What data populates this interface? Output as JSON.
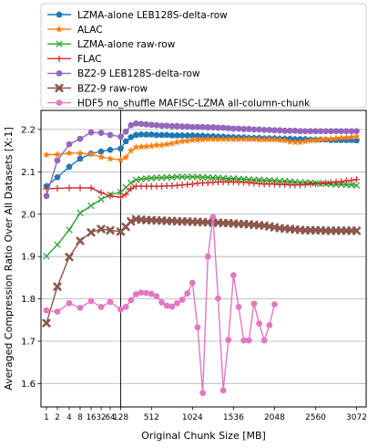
{
  "chart_data": {
    "type": "line",
    "title": "",
    "xlabel": "Original Chunk Size [MB]",
    "ylabel": "Averaged Compression Ratio Over All Datasets [X:1]",
    "xlim": [
      -120,
      3120
    ],
    "ylim": [
      1.545,
      2.245
    ],
    "grid": "horizontal",
    "legend_position": "top (above plot)",
    "reference_line_x": 128,
    "x_tick_labels": [
      "1",
      "2",
      "4",
      "8",
      "16",
      "32",
      "64",
      "128",
      "512",
      "1024",
      "1536",
      "2048",
      "2560",
      "3072"
    ],
    "y_tick_labels": [
      "1.6",
      "1.7",
      "1.8",
      "1.9",
      "2.0",
      "2.1",
      "2.2"
    ],
    "y_ticks": [
      1.6,
      1.7,
      1.8,
      1.9,
      2.0,
      2.1,
      2.2
    ],
    "series": [
      {
        "name": "LZMA-alone LEB128S-delta-row",
        "color": "#1f77b4",
        "marker": "pentagon",
        "x": [
          1,
          2,
          4,
          8,
          16,
          32,
          64,
          128,
          192,
          256,
          320,
          384,
          448,
          512,
          576,
          640,
          704,
          768,
          832,
          896,
          960,
          1024,
          1088,
          1152,
          1216,
          1280,
          1344,
          1408,
          1472,
          1536,
          1600,
          1664,
          1728,
          1792,
          1856,
          1920,
          1984,
          2048,
          2112,
          2176,
          2240,
          2304,
          2368,
          2432,
          2496,
          2560,
          2624,
          2688,
          2752,
          2816,
          2880,
          2944,
          3008,
          3072
        ],
        "y": [
          2.066,
          2.087,
          2.112,
          2.131,
          2.143,
          2.148,
          2.152,
          2.155,
          2.172,
          2.182,
          2.187,
          2.188,
          2.188,
          2.188,
          2.187,
          2.187,
          2.187,
          2.186,
          2.186,
          2.186,
          2.186,
          2.186,
          2.185,
          2.185,
          2.184,
          2.184,
          2.183,
          2.183,
          2.182,
          2.182,
          2.181,
          2.181,
          2.18,
          2.18,
          2.18,
          2.179,
          2.179,
          2.179,
          2.178,
          2.178,
          2.178,
          2.177,
          2.177,
          2.177,
          2.176,
          2.176,
          2.176,
          2.176,
          2.175,
          2.175,
          2.175,
          2.175,
          2.175,
          2.174
        ]
      },
      {
        "name": "ALAC",
        "color": "#ff7f0e",
        "marker": "star",
        "x": [
          1,
          2,
          4,
          8,
          16,
          32,
          64,
          128,
          192,
          256,
          320,
          384,
          448,
          512,
          576,
          640,
          704,
          768,
          832,
          896,
          960,
          1024,
          1088,
          1152,
          1216,
          1280,
          1344,
          1408,
          1472,
          1536,
          1600,
          1664,
          1728,
          1792,
          1856,
          1920,
          1984,
          2048,
          2112,
          2176,
          2240,
          2304,
          2368,
          2432,
          2496,
          2560,
          2624,
          2688,
          2752,
          2816,
          2880,
          2944,
          3008,
          3072
        ],
        "y": [
          2.14,
          2.141,
          2.144,
          2.144,
          2.142,
          2.135,
          2.131,
          2.128,
          2.134,
          2.15,
          2.158,
          2.159,
          2.16,
          2.161,
          2.163,
          2.163,
          2.165,
          2.167,
          2.17,
          2.172,
          2.173,
          2.175,
          2.175,
          2.176,
          2.177,
          2.177,
          2.177,
          2.177,
          2.177,
          2.177,
          2.177,
          2.177,
          2.177,
          2.177,
          2.176,
          2.176,
          2.176,
          2.176,
          2.175,
          2.174,
          2.171,
          2.17,
          2.17,
          2.172,
          2.174,
          2.175,
          2.176,
          2.177,
          2.178,
          2.179,
          2.18,
          2.181,
          2.182,
          2.183
        ]
      },
      {
        "name": "LZMA-alone raw-row",
        "color": "#2ca02c",
        "marker": "x",
        "x": [
          1,
          2,
          4,
          8,
          16,
          32,
          64,
          128,
          192,
          256,
          320,
          384,
          448,
          512,
          576,
          640,
          704,
          768,
          832,
          896,
          960,
          1024,
          1088,
          1152,
          1216,
          1280,
          1344,
          1408,
          1472,
          1536,
          1600,
          1664,
          1728,
          1792,
          1856,
          1920,
          1984,
          2048,
          2112,
          2176,
          2240,
          2304,
          2368,
          2432,
          2496,
          2560,
          2624,
          2688,
          2752,
          2816,
          2880,
          2944,
          3008,
          3072
        ],
        "y": [
          1.901,
          1.928,
          1.963,
          2.003,
          2.02,
          2.035,
          2.046,
          2.052,
          2.063,
          2.074,
          2.081,
          2.083,
          2.084,
          2.085,
          2.086,
          2.086,
          2.087,
          2.087,
          2.088,
          2.088,
          2.088,
          2.088,
          2.088,
          2.087,
          2.087,
          2.086,
          2.086,
          2.085,
          2.084,
          2.084,
          2.083,
          2.083,
          2.082,
          2.081,
          2.081,
          2.08,
          2.08,
          2.079,
          2.078,
          2.078,
          2.077,
          2.076,
          2.075,
          2.075,
          2.074,
          2.073,
          2.072,
          2.072,
          2.071,
          2.07,
          2.07,
          2.069,
          2.069,
          2.068
        ]
      },
      {
        "name": "FLAC",
        "color": "#d62728",
        "marker": "plus",
        "x": [
          1,
          2,
          4,
          8,
          16,
          32,
          64,
          128,
          192,
          256,
          320,
          384,
          448,
          512,
          576,
          640,
          704,
          768,
          832,
          896,
          960,
          1024,
          1088,
          1152,
          1216,
          1280,
          1344,
          1408,
          1472,
          1536,
          1600,
          1664,
          1728,
          1792,
          1856,
          1920,
          1984,
          2048,
          2112,
          2176,
          2240,
          2304,
          2368,
          2432,
          2496,
          2560,
          2624,
          2688,
          2752,
          2816,
          2880,
          2944,
          3008,
          3072
        ],
        "y": [
          2.06,
          2.061,
          2.062,
          2.062,
          2.062,
          2.051,
          2.043,
          2.04,
          2.047,
          2.06,
          2.066,
          2.066,
          2.066,
          2.066,
          2.066,
          2.066,
          2.067,
          2.067,
          2.068,
          2.069,
          2.07,
          2.071,
          2.073,
          2.074,
          2.074,
          2.075,
          2.076,
          2.076,
          2.076,
          2.076,
          2.075,
          2.075,
          2.074,
          2.073,
          2.072,
          2.071,
          2.071,
          2.071,
          2.07,
          2.07,
          2.069,
          2.069,
          2.069,
          2.07,
          2.071,
          2.072,
          2.073,
          2.074,
          2.075,
          2.076,
          2.077,
          2.079,
          2.08,
          2.082
        ]
      },
      {
        "name": "BZ2-9 LEB128S-delta-row",
        "color": "#9467bd",
        "marker": "circle",
        "x": [
          1,
          2,
          4,
          8,
          16,
          32,
          64,
          128,
          192,
          256,
          320,
          384,
          448,
          512,
          576,
          640,
          704,
          768,
          832,
          896,
          960,
          1024,
          1088,
          1152,
          1216,
          1280,
          1344,
          1408,
          1472,
          1536,
          1600,
          1664,
          1728,
          1792,
          1856,
          1920,
          1984,
          2048,
          2112,
          2176,
          2240,
          2304,
          2368,
          2432,
          2496,
          2560,
          2624,
          2688,
          2752,
          2816,
          2880,
          2944,
          3008,
          3072
        ],
        "y": [
          2.043,
          2.127,
          2.165,
          2.178,
          2.193,
          2.192,
          2.187,
          2.183,
          2.195,
          2.21,
          2.214,
          2.213,
          2.212,
          2.211,
          2.21,
          2.209,
          2.209,
          2.208,
          2.208,
          2.207,
          2.207,
          2.206,
          2.206,
          2.206,
          2.205,
          2.205,
          2.204,
          2.204,
          2.203,
          2.202,
          2.202,
          2.201,
          2.201,
          2.2,
          2.2,
          2.199,
          2.199,
          2.198,
          2.198,
          2.197,
          2.197,
          2.197,
          2.196,
          2.196,
          2.196,
          2.196,
          2.196,
          2.196,
          2.196,
          2.196,
          2.196,
          2.196,
          2.196,
          2.196
        ]
      },
      {
        "name": "BZ2-9 raw-row",
        "color": "#8c564b",
        "marker": "x-thick",
        "x": [
          1,
          2,
          4,
          8,
          16,
          32,
          64,
          128,
          192,
          256,
          320,
          384,
          448,
          512,
          576,
          640,
          704,
          768,
          832,
          896,
          960,
          1024,
          1088,
          1152,
          1216,
          1280,
          1344,
          1408,
          1472,
          1536,
          1600,
          1664,
          1728,
          1792,
          1856,
          1920,
          1984,
          2048,
          2112,
          2176,
          2240,
          2304,
          2368,
          2432,
          2496,
          2560,
          2624,
          2688,
          2752,
          2816,
          2880,
          2944,
          3008,
          3072
        ],
        "y": [
          1.743,
          1.829,
          1.899,
          1.937,
          1.957,
          1.965,
          1.962,
          1.959,
          1.97,
          1.983,
          1.988,
          1.987,
          1.986,
          1.986,
          1.985,
          1.985,
          1.984,
          1.984,
          1.983,
          1.983,
          1.983,
          1.982,
          1.982,
          1.981,
          1.981,
          1.98,
          1.98,
          1.979,
          1.979,
          1.978,
          1.977,
          1.977,
          1.976,
          1.975,
          1.974,
          1.973,
          1.971,
          1.969,
          1.967,
          1.966,
          1.965,
          1.964,
          1.963,
          1.962,
          1.962,
          1.962,
          1.962,
          1.961,
          1.961,
          1.961,
          1.961,
          1.961,
          1.961,
          1.961
        ]
      },
      {
        "name": "HDF5 no_shuffle MAFISC-LZMA all-column-chunk",
        "color": "#e377c2",
        "marker": "circle",
        "x": [
          1,
          2,
          4,
          8,
          16,
          32,
          64,
          128,
          192,
          256,
          320,
          384,
          448,
          512,
          576,
          640,
          704,
          768,
          832,
          896,
          960,
          1024,
          1088,
          1152,
          1216,
          1280,
          1344,
          1408,
          1472,
          1536,
          1600,
          1664,
          1728,
          1792,
          1856,
          1920,
          1984,
          2048
        ],
        "y": [
          1.773,
          1.77,
          1.79,
          1.779,
          1.795,
          1.781,
          1.793,
          1.775,
          1.781,
          1.797,
          1.811,
          1.815,
          1.814,
          1.812,
          1.806,
          1.792,
          1.784,
          1.782,
          1.79,
          1.798,
          1.813,
          1.838,
          1.733,
          1.578,
          1.9,
          1.993,
          1.801,
          1.584,
          1.703,
          1.856,
          1.781,
          1.702,
          1.702,
          1.789,
          1.742,
          1.702,
          1.738,
          1.787
        ]
      }
    ]
  }
}
